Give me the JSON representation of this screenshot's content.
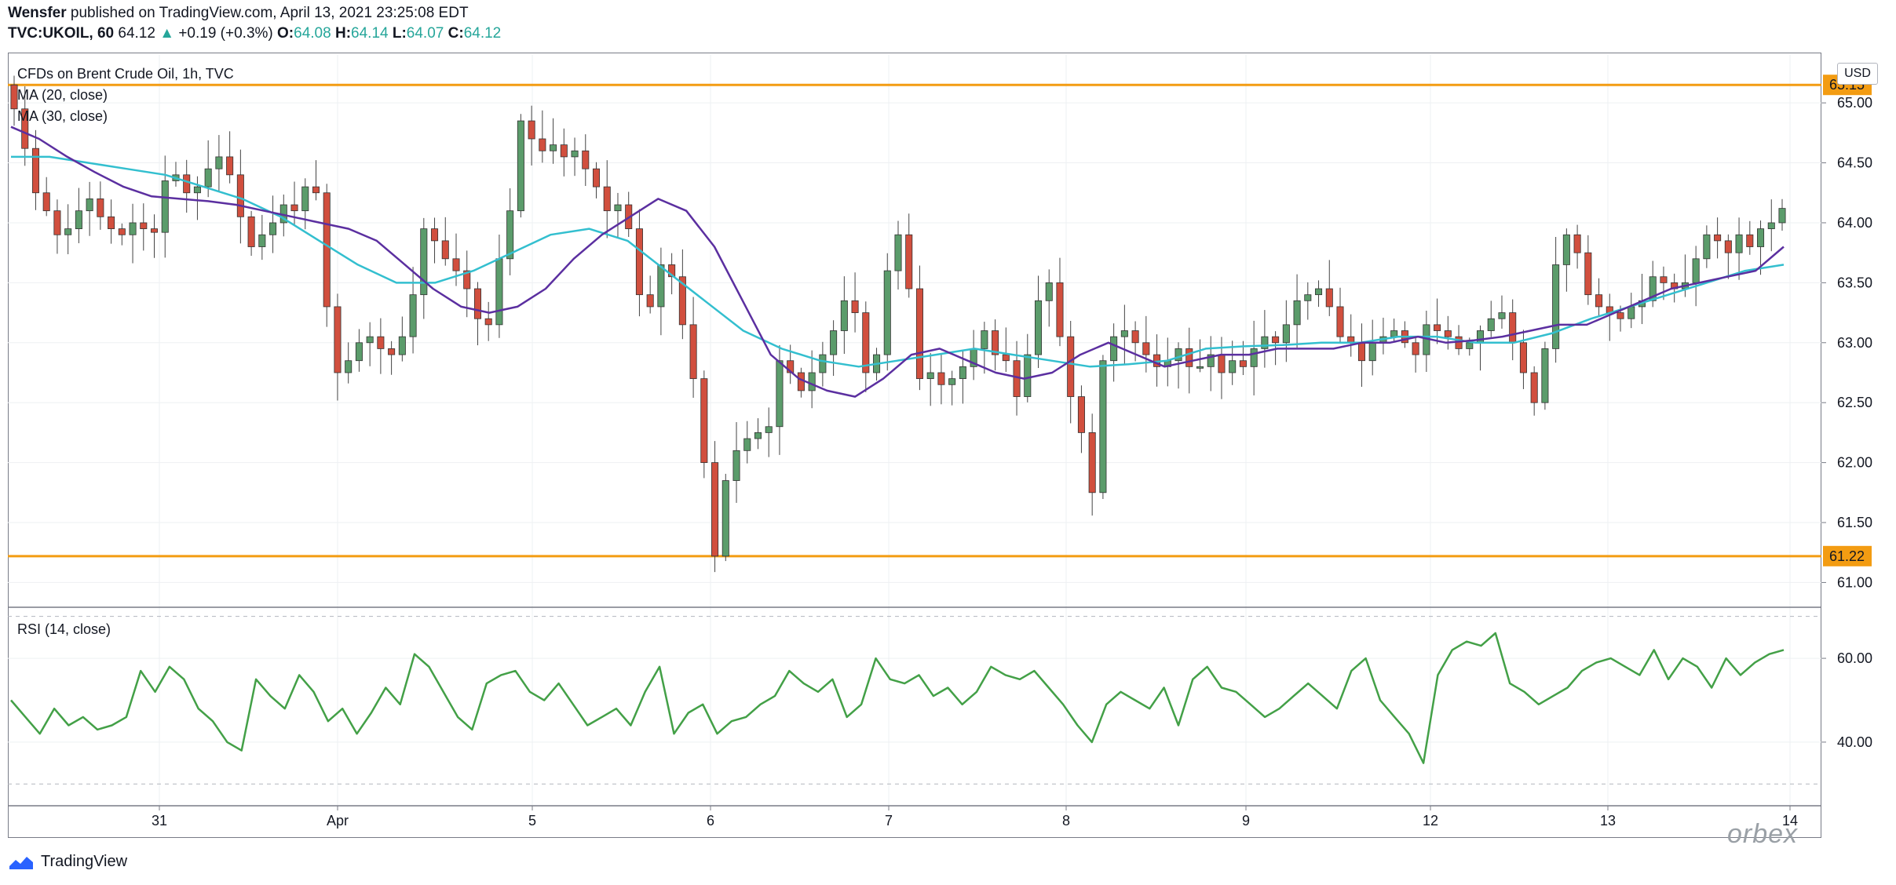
{
  "header": {
    "author": "Wensfer",
    "published": " published on TradingView.com, April 13, 2021 23:25:08 EDT",
    "symbol": "TVC:UKOIL, 60",
    "last": "64.12",
    "change": "+0.19 (+0.3%)",
    "o_label": "O:",
    "o_value": "64.08",
    "h_label": "H:",
    "h_value": "64.14",
    "l_label": "L:",
    "l_value": "64.07",
    "c_label": "C:",
    "c_value": "64.12"
  },
  "legend": {
    "main": "CFDs on Brent Crude Oil, 1h, TVC",
    "ma20": "MA (20, close)",
    "ma30": "MA (30, close)",
    "rsi": "RSI (14, close)"
  },
  "currency": "USD",
  "footer": {
    "brand": "TradingView",
    "watermark": "orbex"
  },
  "colors": {
    "up": "#5b9c6b",
    "down": "#d14f3e",
    "ma20": "#5b2fa0",
    "ma30": "#33bfcf",
    "hline": "#f39c12",
    "rsi": "#43a047",
    "grid": "#eef0f3"
  },
  "chart_data": [
    {
      "type": "candlestick",
      "title": "CFDs on Brent Crude Oil, 1h, TVC",
      "ylim": [
        60.8,
        65.4
      ],
      "y_ticks": [
        "65.00",
        "64.50",
        "64.00",
        "63.50",
        "63.00",
        "62.50",
        "62.00",
        "61.50",
        "61.00"
      ],
      "x_ticks": [
        "31",
        "Apr",
        "5",
        "6",
        "7",
        "8",
        "9",
        "12",
        "13",
        "14"
      ],
      "horizontal_lines": [
        65.15,
        61.22
      ],
      "horizontal_line_labels": [
        "65.15",
        "61.22"
      ],
      "series_close": [
        64.95,
        64.62,
        64.25,
        64.1,
        63.9,
        63.95,
        64.1,
        64.2,
        64.05,
        63.95,
        63.9,
        64.0,
        63.95,
        63.92,
        64.35,
        64.4,
        64.25,
        64.3,
        64.45,
        64.55,
        64.4,
        64.05,
        63.8,
        63.9,
        64.0,
        64.15,
        64.1,
        64.3,
        64.25,
        63.3,
        62.75,
        62.85,
        63.0,
        63.05,
        62.95,
        62.9,
        63.05,
        63.4,
        63.95,
        63.85,
        63.7,
        63.6,
        63.45,
        63.2,
        63.15,
        63.7,
        64.1,
        64.85,
        64.7,
        64.6,
        64.65,
        64.55,
        64.6,
        64.45,
        64.3,
        64.1,
        64.15,
        63.95,
        63.4,
        63.3,
        63.65,
        63.55,
        63.15,
        62.7,
        62.0,
        61.22,
        61.85,
        62.1,
        62.2,
        62.25,
        62.3,
        62.85,
        62.75,
        62.6,
        62.75,
        62.9,
        63.1,
        63.35,
        63.25,
        62.75,
        62.9,
        63.6,
        63.9,
        63.45,
        62.7,
        62.75,
        62.65,
        62.7,
        62.8,
        62.95,
        63.1,
        62.9,
        62.85,
        62.55,
        62.9,
        63.35,
        63.5,
        63.05,
        62.55,
        62.25,
        61.75,
        62.85,
        63.05,
        63.1,
        63.0,
        62.9,
        62.8,
        62.85,
        62.95,
        62.8,
        62.8,
        62.9,
        62.75,
        62.85,
        62.8,
        62.95,
        63.05,
        63.0,
        63.15,
        63.35,
        63.4,
        63.45,
        63.3,
        63.05,
        63.0,
        62.85,
        63.0,
        63.05,
        63.1,
        63.0,
        62.9,
        63.15,
        63.1,
        63.05,
        62.95,
        63.0,
        63.1,
        63.2,
        63.25,
        63.0,
        62.75,
        62.5,
        62.95,
        63.65,
        63.9,
        63.75,
        63.4,
        63.3,
        63.25,
        63.2,
        63.3,
        63.35,
        63.55,
        63.5,
        63.45,
        63.5,
        63.7,
        63.9,
        63.85,
        63.75,
        63.9,
        63.8,
        63.95,
        64.0,
        64.12
      ],
      "series": [
        {
          "name": "MA (20, close)",
          "values": [
            64.8,
            64.7,
            64.55,
            64.42,
            64.3,
            64.22,
            64.2,
            64.18,
            64.15,
            64.1,
            64.05,
            64.0,
            63.95,
            63.85,
            63.65,
            63.45,
            63.3,
            63.25,
            63.3,
            63.45,
            63.7,
            63.9,
            64.05,
            64.2,
            64.1,
            63.8,
            63.35,
            62.9,
            62.7,
            62.6,
            62.55,
            62.7,
            62.9,
            62.95,
            62.85,
            62.75,
            62.7,
            62.75,
            62.9,
            63.0,
            62.9,
            62.8,
            62.85,
            62.9,
            62.9,
            62.95,
            62.95,
            62.95,
            63.0,
            63.0,
            63.05,
            63.0,
            63.02,
            63.05,
            63.1,
            63.15,
            63.15,
            63.25,
            63.35,
            63.45,
            63.5,
            63.55,
            63.6,
            63.8
          ]
        },
        {
          "name": "MA (30, close)",
          "values": [
            64.55,
            64.55,
            64.5,
            64.45,
            64.4,
            64.3,
            64.2,
            64.05,
            63.85,
            63.65,
            63.5,
            63.5,
            63.6,
            63.75,
            63.9,
            63.95,
            63.85,
            63.6,
            63.35,
            63.1,
            62.95,
            62.85,
            62.8,
            62.85,
            62.9,
            62.95,
            62.9,
            62.85,
            62.8,
            62.82,
            62.85,
            62.95,
            62.97,
            62.98,
            63.0,
            63.0,
            63.05,
            63.05,
            63.0,
            63.0,
            63.08,
            63.2,
            63.3,
            63.4,
            63.5,
            63.6,
            63.65
          ]
        }
      ]
    },
    {
      "type": "line",
      "title": "RSI (14, close)",
      "ylim": [
        25,
        72
      ],
      "y_ticks": [
        "60.00",
        "40.00"
      ],
      "series": [
        {
          "name": "RSI (14, close)",
          "values": [
            50,
            46,
            42,
            48,
            44,
            46,
            43,
            44,
            46,
            57,
            52,
            58,
            55,
            48,
            45,
            40,
            38,
            55,
            51,
            48,
            56,
            52,
            45,
            48,
            42,
            47,
            53,
            49,
            61,
            58,
            52,
            46,
            43,
            54,
            56,
            57,
            52,
            50,
            54,
            49,
            44,
            46,
            48,
            44,
            52,
            58,
            42,
            47,
            49,
            42,
            45,
            46,
            49,
            51,
            57,
            54,
            52,
            55,
            46,
            49,
            60,
            55,
            54,
            56,
            51,
            53,
            49,
            52,
            58,
            56,
            55,
            57,
            53,
            49,
            44,
            40,
            49,
            52,
            50,
            48,
            53,
            44,
            55,
            58,
            53,
            52,
            49,
            46,
            48,
            51,
            54,
            51,
            48,
            57,
            60,
            50,
            46,
            42,
            35,
            56,
            62,
            64,
            63,
            66,
            54,
            52,
            49,
            51,
            53,
            57,
            59,
            60,
            58,
            56,
            62,
            55,
            60,
            58,
            53,
            60,
            56,
            59,
            61,
            62
          ]
        }
      ]
    }
  ]
}
